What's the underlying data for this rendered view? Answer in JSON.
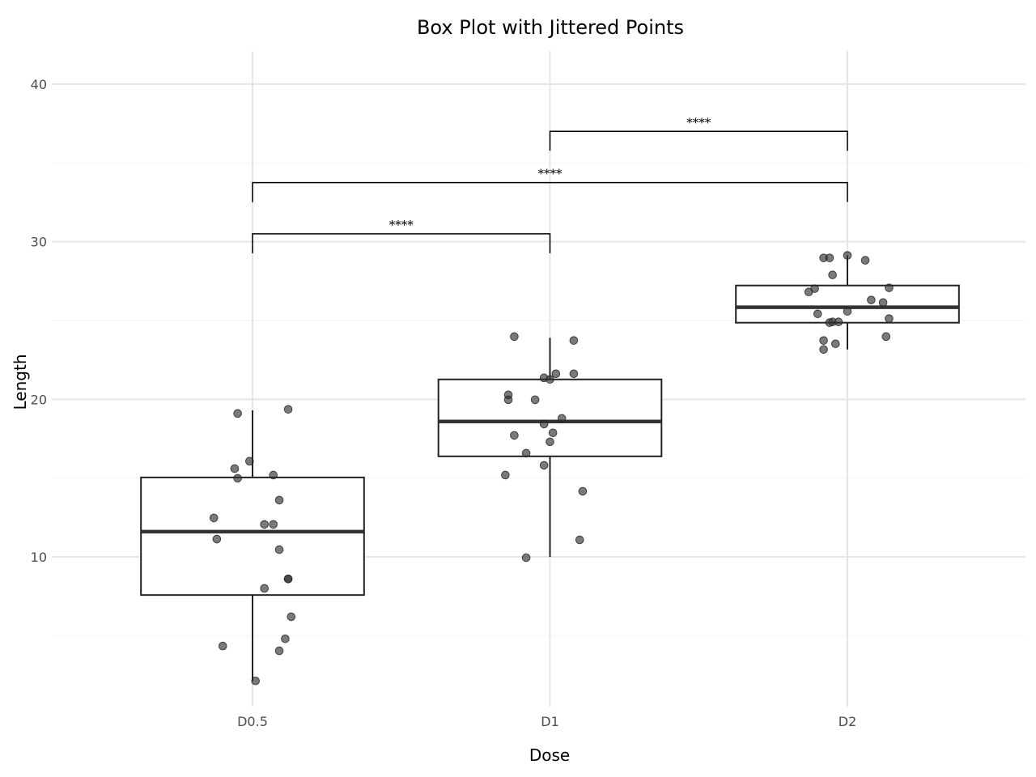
{
  "chart_data": {
    "type": "box",
    "title": "Box Plot with Jittered Points",
    "xlabel": "Dose",
    "ylabel": "Length",
    "categories": [
      "D0.5",
      "D1",
      "D2"
    ],
    "ylim": [
      0.5,
      42.1
    ],
    "yticks": [
      10,
      20,
      30,
      40
    ],
    "ytick_labels": [
      "10",
      "20",
      "30",
      "40"
    ],
    "grid": true,
    "colors": {
      "grid": "#e5e5e5",
      "box": "#222222",
      "point": "#333333"
    },
    "boxes": [
      {
        "category": "D0.5",
        "whisker_low": 2.13,
        "q1": 7.58,
        "median": 11.6,
        "q3": 15.04,
        "whisker_high": 19.3
      },
      {
        "category": "D1",
        "whisker_low": 10.0,
        "q1": 16.38,
        "median": 18.59,
        "q3": 21.26,
        "whisker_high": 23.9
      },
      {
        "category": "D2",
        "whisker_low": 23.16,
        "q1": 24.86,
        "median": 25.84,
        "q3": 27.22,
        "whisker_high": 29.13
      }
    ],
    "points": [
      {
        "category": "D0.5",
        "values": [
          19.1,
          19.36,
          16.07,
          15.6,
          15.19,
          14.99,
          13.6,
          12.47,
          12.06,
          12.06,
          11.13,
          10.46,
          8.6,
          8.6,
          8.0,
          6.2,
          4.8,
          4.34,
          4.04,
          2.13
        ],
        "jitter": [
          -0.05,
          0.12,
          -0.01,
          -0.06,
          0.07,
          -0.05,
          0.09,
          -0.13,
          0.04,
          0.07,
          -0.12,
          0.09,
          0.12,
          0.12,
          0.04,
          0.13,
          0.11,
          -0.1,
          0.09,
          0.01
        ]
      },
      {
        "category": "D1",
        "values": [
          23.98,
          23.73,
          21.62,
          21.62,
          21.36,
          21.26,
          20.28,
          19.97,
          19.97,
          18.79,
          18.43,
          17.71,
          17.87,
          17.3,
          16.58,
          15.81,
          15.19,
          14.16,
          11.08,
          9.95
        ],
        "jitter": [
          -0.12,
          0.08,
          0.02,
          0.08,
          -0.02,
          0.0,
          -0.14,
          -0.14,
          -0.05,
          0.04,
          -0.02,
          -0.12,
          0.01,
          0.0,
          -0.08,
          -0.02,
          -0.15,
          0.11,
          0.1,
          -0.08
        ]
      },
      {
        "category": "D2",
        "values": [
          29.13,
          28.97,
          28.97,
          28.82,
          27.89,
          27.07,
          27.02,
          26.81,
          26.3,
          26.14,
          25.58,
          25.42,
          25.12,
          24.91,
          24.91,
          24.86,
          23.98,
          23.73,
          23.52,
          23.16
        ],
        "jitter": [
          0.0,
          -0.08,
          -0.06,
          0.06,
          -0.05,
          0.14,
          -0.11,
          -0.13,
          0.08,
          0.12,
          0.0,
          -0.1,
          0.14,
          -0.05,
          -0.03,
          -0.06,
          0.13,
          -0.08,
          -0.04,
          -0.08
        ]
      }
    ],
    "comparisons": [
      {
        "from": "D0.5",
        "to": "D1",
        "y": 30.5,
        "label": "****"
      },
      {
        "from": "D0.5",
        "to": "D2",
        "y": 33.75,
        "label": "****"
      },
      {
        "from": "D1",
        "to": "D2",
        "y": 37.0,
        "label": "****"
      }
    ]
  }
}
